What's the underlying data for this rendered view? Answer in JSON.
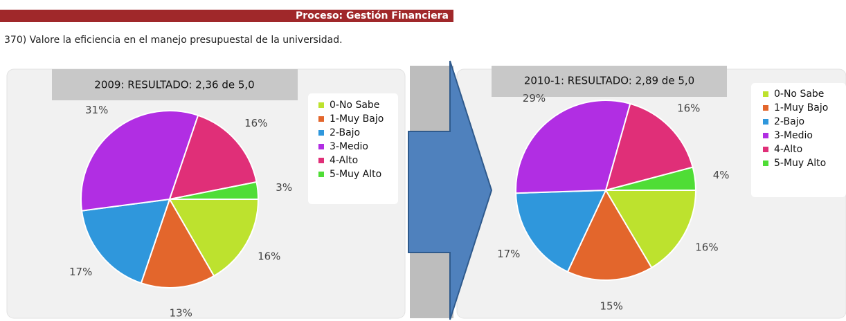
{
  "header": {
    "title": "Proceso: Gestión Financiera",
    "question": "370) Valore la eficiencia en el manejo presupuestal de la universidad."
  },
  "chart_data": [
    {
      "type": "pie",
      "title": "2009: RESULTADO: 2,36 de 5,0",
      "categories": [
        "0-No Sabe",
        "1-Muy Bajo",
        "2-Bajo",
        "3-Medio",
        "4-Alto",
        "5-Muy Alto"
      ],
      "values": [
        16,
        13,
        17,
        31,
        16,
        3
      ],
      "value_labels": [
        "16%",
        "13%",
        "17%",
        "31%",
        "16%",
        "3%"
      ],
      "colors": [
        "#bde22e",
        "#e3662c",
        "#2f97dc",
        "#b12ee3",
        "#e02f78",
        "#4fdd36"
      ]
    },
    {
      "type": "pie",
      "title": "2010-1: RESULTADO: 2,89 de 5,0",
      "categories": [
        "0-No Sabe",
        "1-Muy Bajo",
        "2-Bajo",
        "3-Medio",
        "4-Alto",
        "5-Muy Alto"
      ],
      "values": [
        16,
        15,
        17,
        29,
        16,
        4
      ],
      "value_labels": [
        "16%",
        "15%",
        "17%",
        "29%",
        "16%",
        "4%"
      ],
      "colors": [
        "#bde22e",
        "#e3662c",
        "#2f97dc",
        "#b12ee3",
        "#e02f78",
        "#4fdd36"
      ]
    }
  ]
}
